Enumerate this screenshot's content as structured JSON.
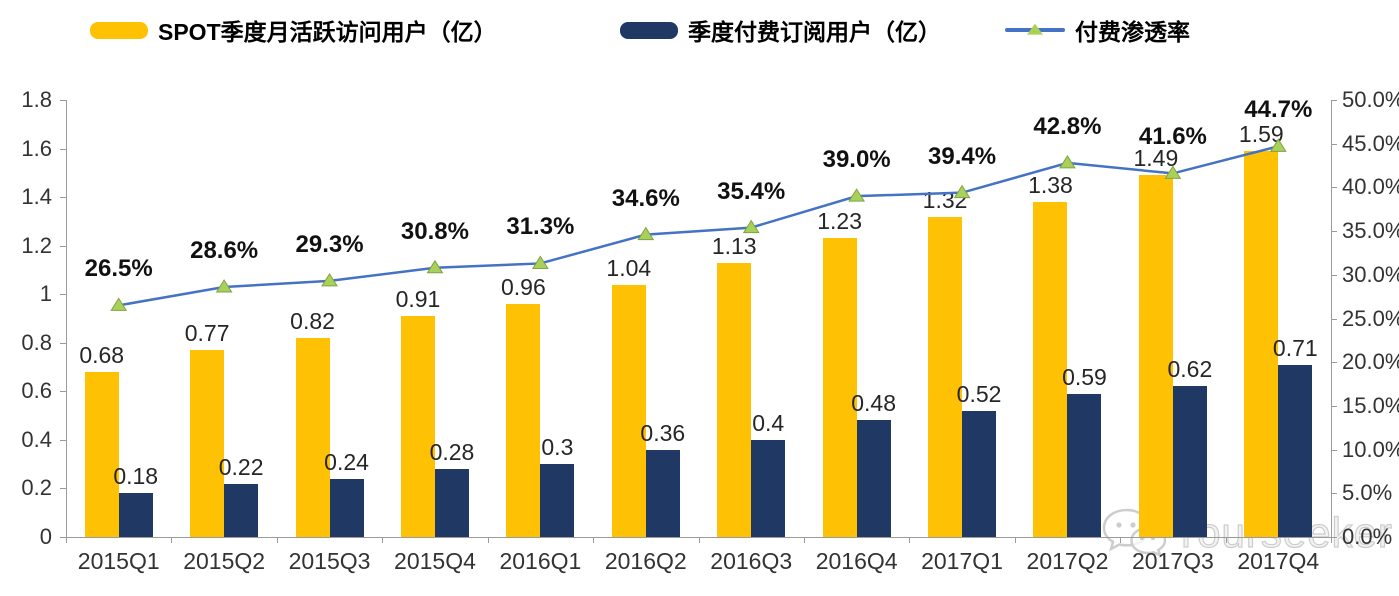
{
  "legend": {
    "items": [
      {
        "label": "SPOT季度月活跃访问用户（亿）",
        "swatch": "bar-swatch",
        "color": "#FFC104"
      },
      {
        "label": "季度付费订阅用户（亿）",
        "swatch": "bar-swatch",
        "color": "#1F3864"
      },
      {
        "label": "付费渗透率",
        "swatch": "line-marker",
        "color": "#4472C4",
        "marker_color": "#A9D159"
      }
    ]
  },
  "chart_data": {
    "type": "bar",
    "subtype": "grouped-bars-with-line-combo",
    "categories": [
      "2015Q1",
      "2015Q2",
      "2015Q3",
      "2015Q4",
      "2016Q1",
      "2016Q2",
      "2016Q3",
      "2016Q4",
      "2017Q1",
      "2017Q2",
      "2017Q3",
      "2017Q4"
    ],
    "series": [
      {
        "name": "SPOT季度月活跃访问用户（亿）",
        "type": "bar",
        "axis": "left",
        "color": "#FFC104",
        "values": [
          0.68,
          0.77,
          0.82,
          0.91,
          0.96,
          1.04,
          1.13,
          1.23,
          1.32,
          1.38,
          1.49,
          1.59
        ],
        "labels": [
          "0.68",
          "0.77",
          "0.82",
          "0.91",
          "0.96",
          "1.04",
          "1.13",
          "1.23",
          "1.32",
          "1.38",
          "1.49",
          "1.59"
        ]
      },
      {
        "name": "季度付费订阅用户（亿）",
        "type": "bar",
        "axis": "left",
        "color": "#1F3864",
        "values": [
          0.18,
          0.22,
          0.24,
          0.28,
          0.3,
          0.36,
          0.4,
          0.48,
          0.52,
          0.59,
          0.62,
          0.71
        ],
        "labels": [
          "0.18",
          "0.22",
          "0.24",
          "0.28",
          "0.3",
          "0.36",
          "0.4",
          "0.48",
          "0.52",
          "0.59",
          "0.62",
          "0.71"
        ]
      },
      {
        "name": "付费渗透率",
        "type": "line",
        "axis": "right",
        "color": "#4472C4",
        "marker": "triangle",
        "marker_color": "#A9D159",
        "marker_edge": "#7FA345",
        "values": [
          26.5,
          28.6,
          29.3,
          30.8,
          31.3,
          34.6,
          35.4,
          39.0,
          39.4,
          42.8,
          41.6,
          44.7
        ],
        "labels": [
          "26.5%",
          "28.6%",
          "29.3%",
          "30.8%",
          "31.3%",
          "34.6%",
          "35.4%",
          "39.0%",
          "39.4%",
          "42.8%",
          "41.6%",
          "44.7%"
        ]
      }
    ],
    "left_axis": {
      "min": 0,
      "max": 1.8,
      "step": 0.2,
      "ticks": [
        "1.8",
        "1.6",
        "1.4",
        "1.2",
        "1",
        "0.8",
        "0.6",
        "0.4",
        "0.2",
        "0"
      ]
    },
    "right_axis": {
      "min": 0,
      "max": 50,
      "step": 5,
      "ticks": [
        "50.0%",
        "45.0%",
        "40.0%",
        "35.0%",
        "30.0%",
        "25.0%",
        "20.0%",
        "15.0%",
        "10.0%",
        "5.0%",
        "0.0%"
      ]
    },
    "grid": false,
    "legend_position": "top",
    "title": ""
  },
  "watermark": {
    "text": "Yourseeker",
    "icon": "wechat-icon"
  }
}
